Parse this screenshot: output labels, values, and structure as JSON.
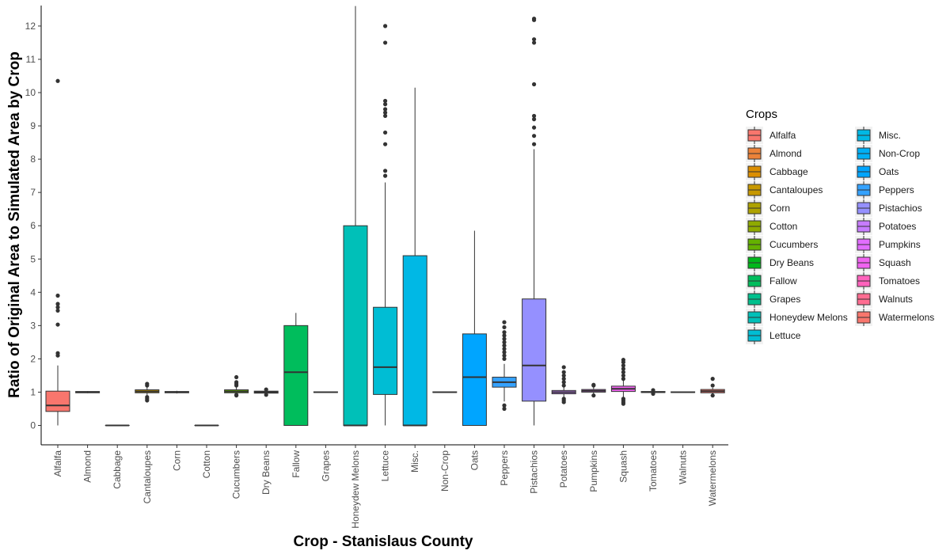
{
  "chart_data": {
    "type": "boxplot",
    "xlabel": "Crop - Stanislaus County",
    "ylabel": "Ratio of Original Area to Simulated Area by Crop",
    "ylim": [
      -0.55,
      12.6
    ],
    "yticks": [
      0,
      1,
      2,
      3,
      4,
      5,
      6,
      7,
      8,
      9,
      10,
      11,
      12
    ],
    "grid": false,
    "legend": {
      "title": "Crops",
      "placement": "right",
      "columns": 2
    },
    "categories": [
      "Alfalfa",
      "Almond",
      "Cabbage",
      "Cantaloupes",
      "Corn",
      "Cotton",
      "Cucumbers",
      "Dry Beans",
      "Fallow",
      "Grapes",
      "Honeydew Melons",
      "Lettuce",
      "Misc.",
      "Non-Crop",
      "Oats",
      "Peppers",
      "Pistachios",
      "Potatoes",
      "Pumpkins",
      "Squash",
      "Tomatoes",
      "Walnuts",
      "Watermelons"
    ],
    "colors": [
      "#F8766D",
      "#EC8239",
      "#DB8E00",
      "#C79800",
      "#AEA200",
      "#8FAA00",
      "#64B200",
      "#00B81B",
      "#00BD5C",
      "#00C08D",
      "#00C0B8",
      "#00BDD4",
      "#00B8E5",
      "#00B0F6",
      "#00A5FF",
      "#35A2FF",
      "#9590FF",
      "#C77CFF",
      "#E16DFF",
      "#F063F0",
      "#FF62BC",
      "#FF6C91",
      "#F8766D"
    ],
    "boxes": [
      {
        "q1": 0.42,
        "median": 0.6,
        "q3": 1.03,
        "lower": 0,
        "upper": 1.8,
        "outliers": [
          2.1,
          2.17,
          3.03,
          3.45,
          3.55,
          3.65,
          3.9,
          10.35
        ]
      },
      {
        "q1": 0.98,
        "median": 1.0,
        "q3": 1.02,
        "lower": 0.97,
        "upper": 1.03,
        "outliers": []
      },
      {
        "q1": 0.0,
        "median": 0.0,
        "q3": 0.0,
        "lower": 0,
        "upper": 0,
        "outliers": []
      },
      {
        "q1": 0.98,
        "median": 1.02,
        "q3": 1.07,
        "lower": 0.9,
        "upper": 1.15,
        "outliers": [
          0.75,
          0.8,
          0.85,
          1.2,
          1.25
        ]
      },
      {
        "q1": 0.98,
        "median": 1.0,
        "q3": 1.02,
        "lower": 0.96,
        "upper": 1.04,
        "outliers": []
      },
      {
        "q1": 0.0,
        "median": 0.0,
        "q3": 0.0,
        "lower": 0,
        "upper": 0,
        "outliers": []
      },
      {
        "q1": 0.98,
        "median": 1.02,
        "q3": 1.07,
        "lower": 0.95,
        "upper": 1.15,
        "outliers": [
          0.9,
          0.92,
          1.2,
          1.25,
          1.3,
          1.45
        ]
      },
      {
        "q1": 0.97,
        "median": 1.0,
        "q3": 1.03,
        "lower": 0.95,
        "upper": 1.05,
        "outliers": [
          0.92,
          1.08
        ]
      },
      {
        "q1": 0.0,
        "median": 1.6,
        "q3": 3.0,
        "lower": 0,
        "upper": 3.38,
        "outliers": []
      },
      {
        "q1": 0.99,
        "median": 1.0,
        "q3": 1.01,
        "lower": 0.98,
        "upper": 1.02,
        "outliers": []
      },
      {
        "q1": 0.0,
        "median": 0.0,
        "q3": 6.0,
        "lower": 0,
        "upper": 12.6,
        "outliers": []
      },
      {
        "q1": 0.93,
        "median": 1.75,
        "q3": 3.55,
        "lower": 0,
        "upper": 7.3,
        "outliers": [
          7.5,
          7.65,
          8.45,
          8.8,
          9.3,
          9.4,
          9.5,
          9.65,
          9.75,
          11.5,
          12.0
        ]
      },
      {
        "q1": 0.0,
        "median": 0.0,
        "q3": 5.1,
        "lower": 0,
        "upper": 10.15,
        "outliers": []
      },
      {
        "q1": 0.99,
        "median": 1.0,
        "q3": 1.01,
        "lower": 0.98,
        "upper": 1.02,
        "outliers": []
      },
      {
        "q1": 0.0,
        "median": 1.45,
        "q3": 2.75,
        "lower": 0,
        "upper": 5.85,
        "outliers": []
      },
      {
        "q1": 1.15,
        "median": 1.3,
        "q3": 1.45,
        "lower": 0.72,
        "upper": 1.85,
        "outliers": [
          0.5,
          0.6,
          2.0,
          2.1,
          2.2,
          2.3,
          2.4,
          2.5,
          2.6,
          2.7,
          2.8,
          2.95,
          3.1
        ]
      },
      {
        "q1": 0.73,
        "median": 1.8,
        "q3": 3.8,
        "lower": 0,
        "upper": 8.3,
        "outliers": [
          8.45,
          8.7,
          8.95,
          9.2,
          9.3,
          10.25,
          11.5,
          11.6,
          12.18,
          12.22
        ]
      },
      {
        "q1": 0.95,
        "median": 1.0,
        "q3": 1.05,
        "lower": 0.85,
        "upper": 1.15,
        "outliers": [
          0.7,
          0.75,
          0.8,
          1.2,
          1.3,
          1.4,
          1.5,
          1.6,
          1.75
        ]
      },
      {
        "q1": 1.0,
        "median": 1.04,
        "q3": 1.08,
        "lower": 0.95,
        "upper": 1.15,
        "outliers": [
          0.9,
          1.2,
          1.22
        ]
      },
      {
        "q1": 1.02,
        "median": 1.1,
        "q3": 1.18,
        "lower": 0.85,
        "upper": 1.35,
        "outliers": [
          0.65,
          0.7,
          0.75,
          0.8,
          1.4,
          1.5,
          1.6,
          1.7,
          1.8,
          1.9,
          1.97
        ]
      },
      {
        "q1": 0.99,
        "median": 1.0,
        "q3": 1.02,
        "lower": 0.97,
        "upper": 1.04,
        "outliers": [
          0.95,
          1.06
        ]
      },
      {
        "q1": 0.99,
        "median": 1.0,
        "q3": 1.01,
        "lower": 0.98,
        "upper": 1.02,
        "outliers": []
      },
      {
        "q1": 0.98,
        "median": 1.03,
        "q3": 1.08,
        "lower": 0.95,
        "upper": 1.13,
        "outliers": [
          0.9,
          1.2,
          1.4
        ]
      }
    ]
  }
}
